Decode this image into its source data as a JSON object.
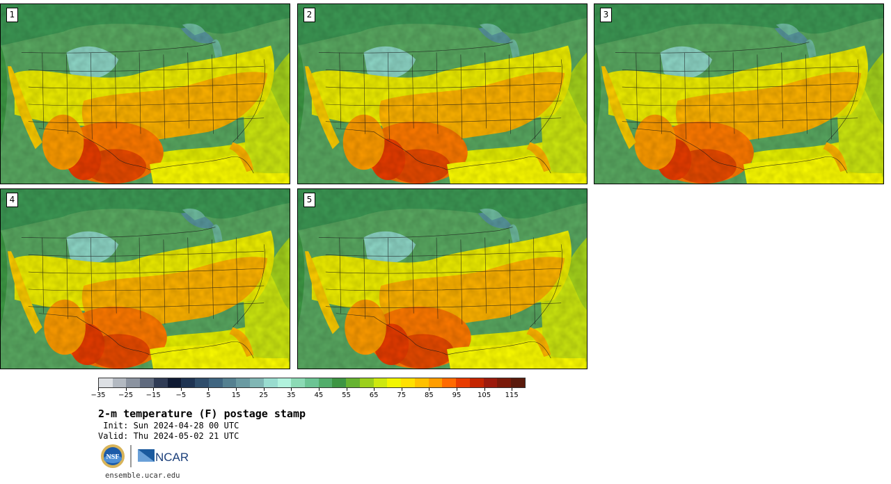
{
  "title": "2-m temperature (F) postage stamp",
  "init": " Init: Sun 2024-04-28 00 UTC",
  "valid": "Valid: Thu 2024-05-02 21 UTC",
  "website": "ensemble.ucar.edu",
  "logos": {
    "nsf": "NSF",
    "ncar": "NCAR"
  },
  "panels": [
    {
      "label": "1"
    },
    {
      "label": "2"
    },
    {
      "label": "3"
    },
    {
      "label": "4"
    },
    {
      "label": "5"
    }
  ],
  "colorbar": {
    "colors": [
      "#dde0e4",
      "#b3b9c1",
      "#8b93a0",
      "#5f6a7e",
      "#2f3b55",
      "#0f1a33",
      "#1e3352",
      "#2f4d6b",
      "#3f6580",
      "#548090",
      "#6a9aa2",
      "#80b6b4",
      "#99dccf",
      "#b1f2dd",
      "#8cdab5",
      "#6cc494",
      "#52ad6b",
      "#3d9543",
      "#66b331",
      "#9bcf1d",
      "#cde810",
      "#f2f500",
      "#ffe000",
      "#ffc000",
      "#ff9d00",
      "#ff6a00",
      "#e83c00",
      "#c42500",
      "#9c1a0c",
      "#7a1a0a",
      "#5a1a0c"
    ],
    "min": -35,
    "max": 120,
    "tick_labels": [
      "−35",
      "−25",
      "−15",
      "−5",
      "5",
      "15",
      "25",
      "35",
      "45",
      "55",
      "65",
      "75",
      "85",
      "95",
      "105",
      "115"
    ],
    "tick_values": [
      -35,
      -25,
      -15,
      -5,
      5,
      15,
      25,
      35,
      45,
      55,
      65,
      75,
      85,
      95,
      105,
      115
    ]
  }
}
